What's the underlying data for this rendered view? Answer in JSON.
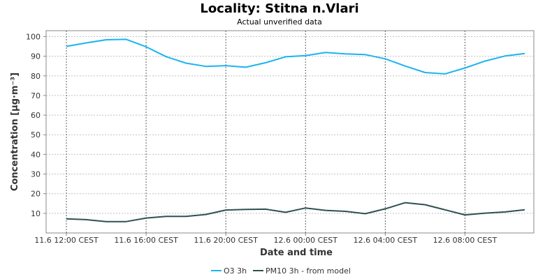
{
  "chart_data": {
    "type": "line",
    "title": "Locality: Stitna n.Vlari",
    "subtitle": "Actual unverified data",
    "xlabel": "Date and time",
    "ylabel": "Concentration [µg·m⁻³]",
    "ylim": [
      0,
      103
    ],
    "yticks": [
      10,
      20,
      30,
      40,
      50,
      60,
      70,
      80,
      90,
      100
    ],
    "x": [
      "11.6 12:00 CEST",
      "11.6 13:00 CEST",
      "11.6 14:00 CEST",
      "11.6 15:00 CEST",
      "11.6 16:00 CEST",
      "11.6 17:00 CEST",
      "11.6 18:00 CEST",
      "11.6 19:00 CEST",
      "11.6 20:00 CEST",
      "11.6 21:00 CEST",
      "11.6 22:00 CEST",
      "11.6 23:00 CEST",
      "12.6 00:00 CEST",
      "12.6 01:00 CEST",
      "12.6 02:00 CEST",
      "12.6 03:00 CEST",
      "12.6 04:00 CEST",
      "12.6 05:00 CEST",
      "12.6 06:00 CEST",
      "12.6 07:00 CEST",
      "12.6 08:00 CEST",
      "12.6 09:00 CEST",
      "12.6 10:00 CEST",
      "12.6 11:00 CEST"
    ],
    "xtick_labels": [
      "11.6 12:00 CEST",
      "11.6 16:00 CEST",
      "11.6 20:00 CEST",
      "12.6 00:00 CEST",
      "12.6 04:00 CEST",
      "12.6 08:00 CEST"
    ],
    "grid": true,
    "legend_position": "bottom-center",
    "series": [
      {
        "name": "O3 3h",
        "color": "#1ab4f0",
        "values": [
          95.0,
          96.8,
          98.4,
          98.6,
          94.8,
          89.8,
          86.5,
          84.8,
          85.2,
          84.4,
          86.7,
          89.7,
          90.3,
          91.9,
          91.2,
          90.8,
          88.7,
          85.0,
          81.7,
          81.0,
          84.0,
          87.5,
          90.1,
          91.4
        ]
      },
      {
        "name": "PM10 3h - from model",
        "color": "#2f5050",
        "values": [
          7.2,
          6.8,
          5.8,
          5.8,
          7.6,
          8.4,
          8.4,
          9.4,
          11.7,
          12.0,
          12.1,
          10.5,
          12.7,
          11.5,
          11.0,
          9.8,
          12.3,
          15.4,
          14.4,
          11.8,
          9.2,
          10.1,
          10.7,
          11.8
        ]
      }
    ]
  }
}
